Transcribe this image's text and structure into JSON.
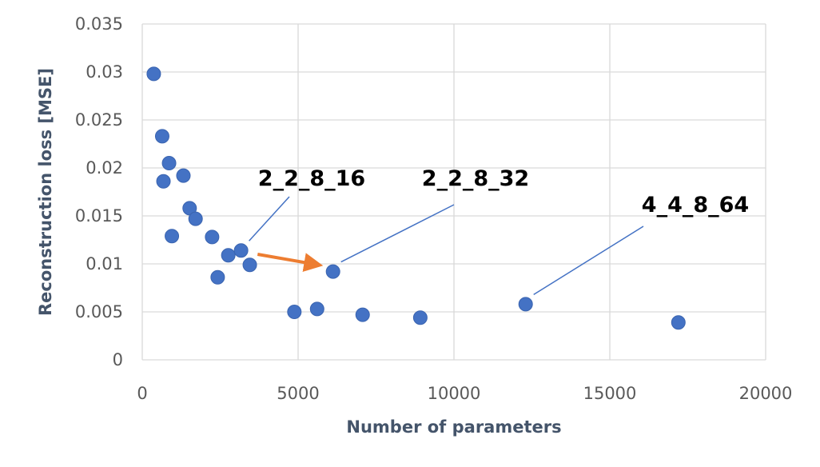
{
  "chart_data": {
    "type": "scatter",
    "title": "",
    "xlabel": "Number of parameters",
    "ylabel": "Reconstruction loss [MSE]",
    "xlim": [
      0,
      20000
    ],
    "ylim": [
      0,
      0.035
    ],
    "x_ticks": [
      "0",
      "5000",
      "10000",
      "15000",
      "20000"
    ],
    "y_ticks": [
      "0",
      "0.005",
      "0.01",
      "0.015",
      "0.02",
      "0.025",
      "0.03",
      "0.035"
    ],
    "grid": true,
    "legend": "none",
    "marker_color": "#4472c4",
    "series": [
      {
        "points": [
          {
            "x": 370,
            "y": 0.0298
          },
          {
            "x": 640,
            "y": 0.0233
          },
          {
            "x": 680,
            "y": 0.0186
          },
          {
            "x": 860,
            "y": 0.0205
          },
          {
            "x": 950,
            "y": 0.0129
          },
          {
            "x": 1320,
            "y": 0.0192
          },
          {
            "x": 1520,
            "y": 0.0158
          },
          {
            "x": 1710,
            "y": 0.0147
          },
          {
            "x": 2240,
            "y": 0.0128
          },
          {
            "x": 2420,
            "y": 0.0086
          },
          {
            "x": 2760,
            "y": 0.0109
          },
          {
            "x": 3170,
            "y": 0.0114
          },
          {
            "x": 3450,
            "y": 0.0099
          },
          {
            "x": 4880,
            "y": 0.005
          },
          {
            "x": 5610,
            "y": 0.0053
          },
          {
            "x": 6120,
            "y": 0.0092
          },
          {
            "x": 7070,
            "y": 0.0047
          },
          {
            "x": 8920,
            "y": 0.0044
          },
          {
            "x": 12300,
            "y": 0.0058
          },
          {
            "x": 17200,
            "y": 0.0039
          }
        ]
      }
    ],
    "annotations": [
      {
        "text": "2_2_8_16",
        "point_x": 3170,
        "point_y": 0.0114
      },
      {
        "text": "2_2_8_32",
        "point_x": 6120,
        "point_y": 0.0092
      },
      {
        "text": "4_4_8_64",
        "point_x": 12300,
        "point_y": 0.0058
      }
    ],
    "arrow": {
      "color": "#ed7d31",
      "from": {
        "x": 3700,
        "y": 0.011
      },
      "to": {
        "x": 5650,
        "y": 0.0099
      }
    }
  }
}
